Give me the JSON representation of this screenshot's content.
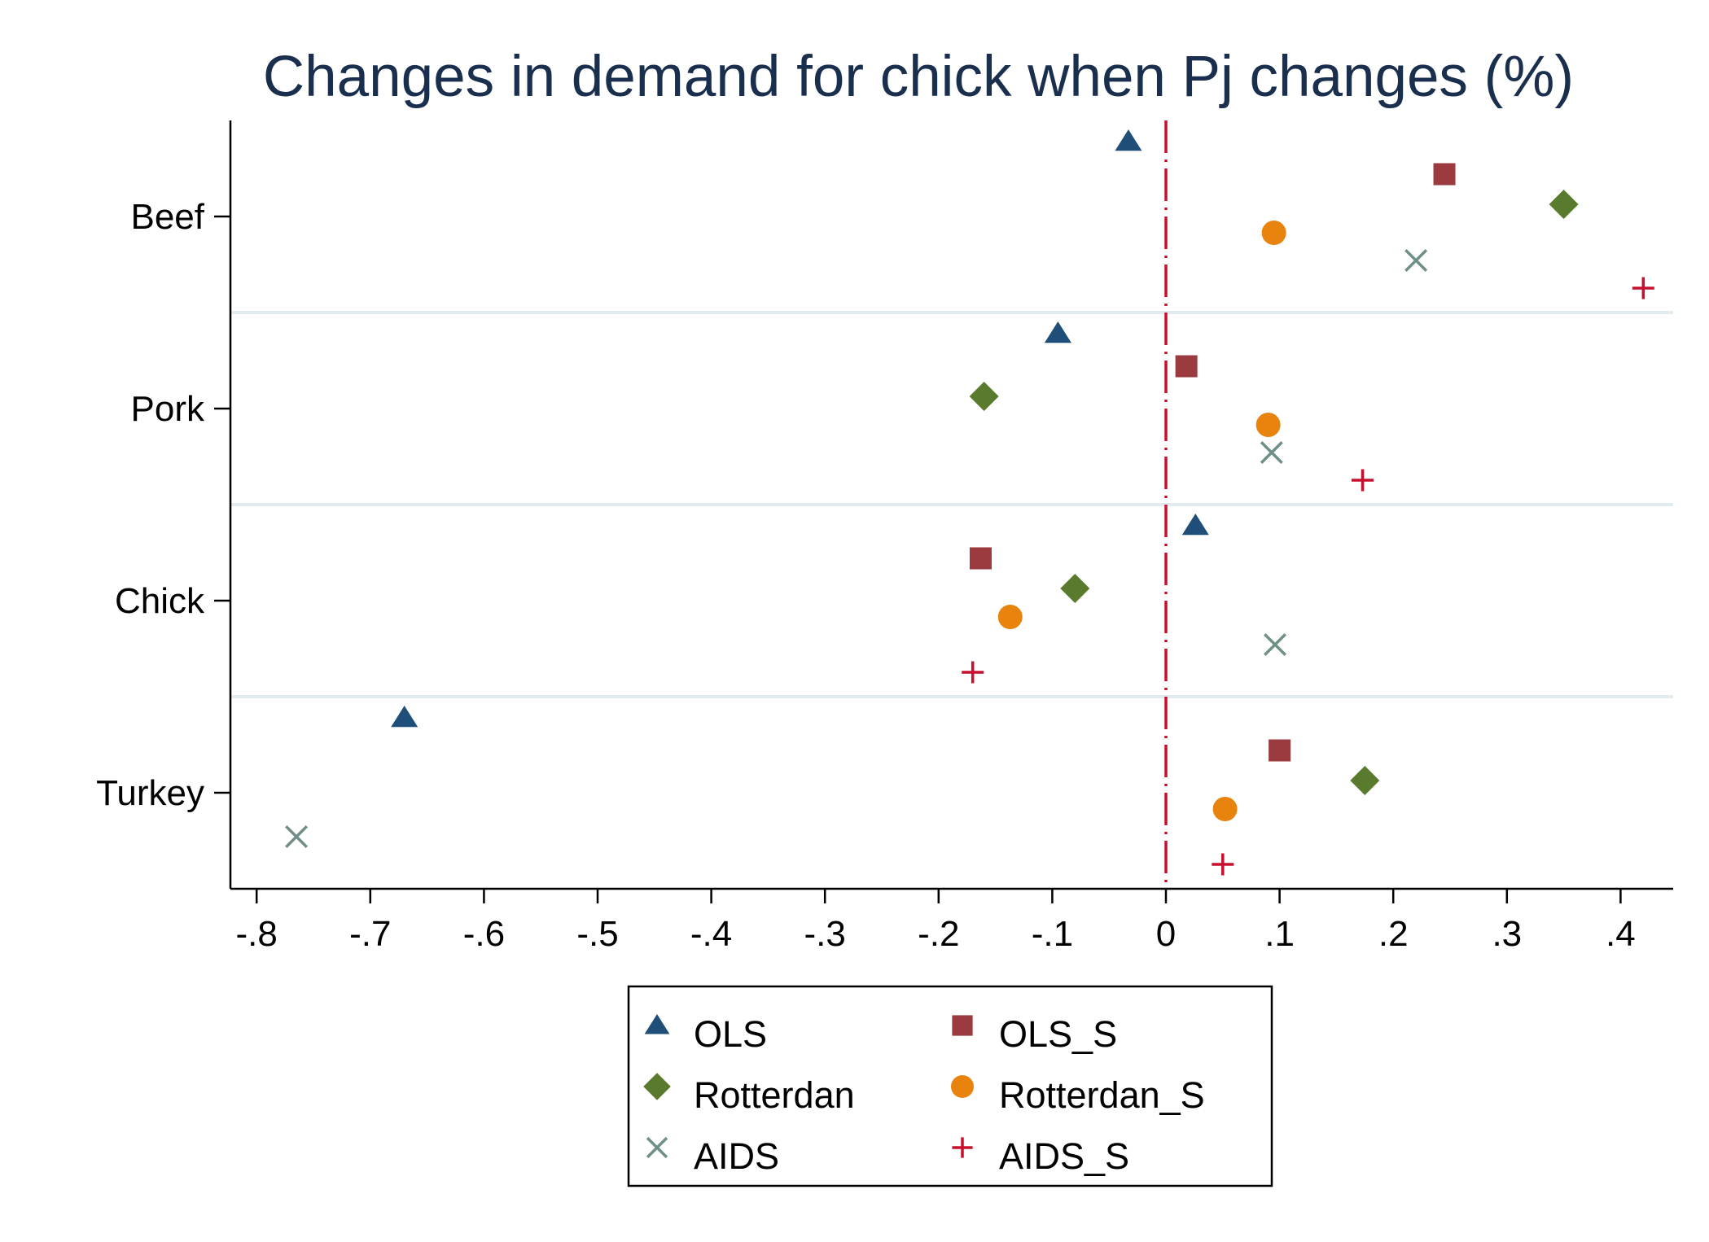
{
  "chart_data": {
    "type": "scatter",
    "title": "Changes in demand for chick when Pj changes (%)",
    "xlabel": "",
    "ylabel": "",
    "xlim": [
      -0.82,
      0.45
    ],
    "x_ticks": [
      -0.8,
      -0.7,
      -0.6,
      -0.5,
      -0.4,
      -0.3,
      -0.2,
      -0.1,
      0,
      0.1,
      0.2,
      0.3,
      0.4
    ],
    "x_tick_labels": [
      "-.8",
      "-.7",
      "-.6",
      "-.5",
      "-.4",
      "-.3",
      "-.2",
      "-.1",
      "0",
      ".1",
      ".2",
      ".3",
      ".4"
    ],
    "categories": [
      "Beef",
      "Pork",
      "Chick",
      "Turkey"
    ],
    "reference_line": {
      "x": 0,
      "style": "dash-dot",
      "color": "#c8102e"
    },
    "grid": "horizontal separators between categories",
    "legend_position": "bottom",
    "series": [
      {
        "name": "OLS",
        "marker": "triangle",
        "color": "#1f4e79",
        "values": [
          -0.033,
          -0.095,
          0.026,
          -0.67
        ]
      },
      {
        "name": "OLS_S",
        "marker": "square",
        "color": "#9b3a3f",
        "values": [
          0.245,
          0.018,
          -0.163,
          0.1
        ]
      },
      {
        "name": "Rotterdan",
        "marker": "diamond",
        "color": "#5a7a2e",
        "values": [
          0.35,
          -0.16,
          -0.08,
          0.175
        ]
      },
      {
        "name": "Rotterdan_S",
        "marker": "circle",
        "color": "#e8830e",
        "values": [
          0.095,
          0.09,
          -0.137,
          0.052
        ]
      },
      {
        "name": "AIDS",
        "marker": "x",
        "color": "#6f8f88",
        "values": [
          0.22,
          0.093,
          0.096,
          -0.765
        ]
      },
      {
        "name": "AIDS_S",
        "marker": "plus",
        "color": "#c8102e",
        "values": [
          0.42,
          0.173,
          -0.17,
          0.05
        ]
      }
    ]
  }
}
